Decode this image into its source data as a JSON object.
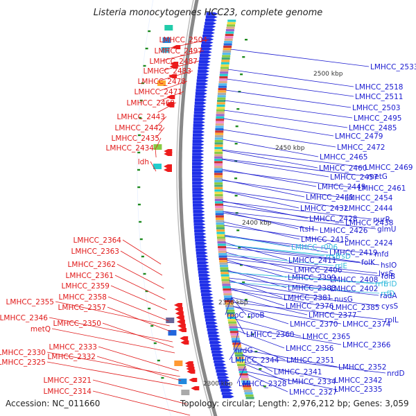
{
  "title": "Listeria monocytogenes HCC23, complete genome",
  "footer": {
    "accession": "Accession: NC_011660",
    "topology": "Topology: circular; Length: 2,976,212 bp; Genes: 3,059"
  },
  "colors": {
    "left_label": "#e01818",
    "right_label": "#1a1ad0",
    "rna_label": "#33bbdd",
    "backbone": "#888888",
    "forward_gene": "#1f2fe8",
    "reverse_gene": "#ee1c1c",
    "tick_dot": "#1e8a1e"
  },
  "ticks": [
    {
      "text": "2500 kbp"
    },
    {
      "text": "2450 kbp"
    },
    {
      "text": "2400 kbp"
    },
    {
      "text": "2350 kbp"
    },
    {
      "text": "2300 kbp"
    }
  ],
  "left_labels": [
    "LMHCC_2504",
    "LMHCC_2497",
    "LMHCC_2487",
    "LMHCC_2483",
    "LMHCC_2478",
    "LMHCC_2471",
    "LMHCC_2468",
    "LMHCC_2443",
    "LMHCC_2442",
    "LMHCC_2435",
    "LMHCC_2434",
    "ldh",
    "LMHCC_2364",
    "LMHCC_2363",
    "LMHCC_2362",
    "LMHCC_2361",
    "LMHCC_2359",
    "LMHCC_2358",
    "LMHCC_2355",
    "LMHCC_2357",
    "LMHCC_2346",
    "LMHCC_2350",
    "metQ",
    "LMHCC_2333",
    "LMHCC_2330",
    "LMHCC_2332",
    "LMHCC_2325",
    "LMHCC_2321",
    "LMHCC_2314"
  ],
  "right_labels": [
    "LMHCC_2533",
    "LMHCC_2518",
    "LMHCC_2511",
    "LMHCC_2503",
    "LMHCC_2495",
    "LMHCC_2485",
    "LMHCC_2479",
    "LMHCC_2472",
    "LMHCC_2465",
    "LMHCC_2460",
    "LMHCC_2469",
    "LMHCC_2457",
    "metG",
    "LMHCC_2461",
    "LMHCC_2449",
    "LMHCC_2441",
    "LMHCC_2454",
    "LMHCC_2444",
    "LMHCC_2432",
    "purR",
    "LMHCC_2428",
    "LMHCC_2438",
    "glmU",
    "ftsH",
    "LMHCC_2426",
    "LMHCC_2415",
    "LMHCC_2424",
    "LMHCC_2419",
    "mfd",
    "LMHCC_2411",
    "folK",
    "hslO",
    "LMHCC_2406",
    "lysS",
    "LMHCC_2399",
    "LMHCC_2408",
    "folB",
    "LMHCC_2388",
    "LMHCC_2402",
    "radA",
    "LMHCC_2381",
    "nusG",
    "LMHCC_2376",
    "LMHCC_2385",
    "cysS",
    "rpoC",
    "rpoB",
    "LMHCC_2377",
    "rplL",
    "LMHCC_2370",
    "LMHCC_2374",
    "LMHCC_2360",
    "LMHCC_2365",
    "LMHCC_2366",
    "nrdG",
    "LMHCC_2356",
    "LMHCC_2344",
    "LMHCC_2351",
    "LMHCC_2352",
    "LMHCC_2341",
    "nrdD",
    "LMHCC_2334",
    "LMHCC_2342",
    "LMHCC_2328",
    "LMHCC_2335",
    "LMHCC_2327"
  ],
  "rna_labels": [
    "LMHCC_r006",
    "rrsE",
    "rrlE",
    "rrsD",
    "rrfE",
    "rrlD",
    "rrfD"
  ]
}
